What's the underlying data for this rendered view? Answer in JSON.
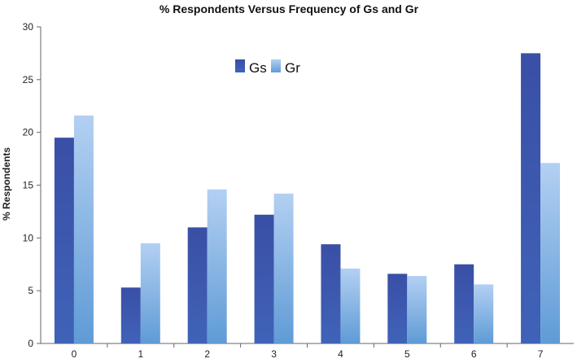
{
  "chart_data": {
    "type": "bar",
    "title": "% Respondents Versus Frequency of Gs and Gr",
    "xlabel": "",
    "ylabel": "% Respondents",
    "categories": [
      "0",
      "1",
      "2",
      "3",
      "4",
      "5",
      "6",
      "7"
    ],
    "series": [
      {
        "name": "Gs",
        "values": [
          19.5,
          5.3,
          11.0,
          12.2,
          9.4,
          6.6,
          7.5,
          27.5
        ],
        "color": "#3a55a8"
      },
      {
        "name": "Gr",
        "values": [
          21.6,
          9.5,
          14.6,
          14.2,
          7.1,
          6.4,
          5.6,
          17.1
        ],
        "color": "#9cc2ec"
      }
    ],
    "ylim": [
      0,
      30
    ],
    "yticks": [
      0,
      5,
      10,
      15,
      20,
      25,
      30
    ],
    "grid": false,
    "legend_position": "top-center"
  }
}
